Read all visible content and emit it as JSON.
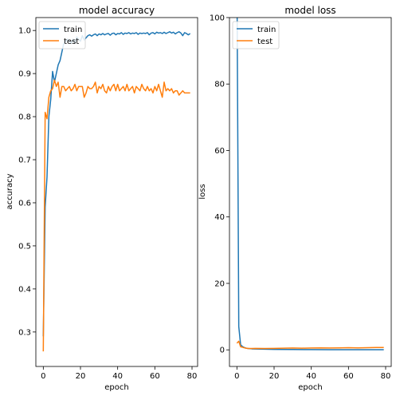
{
  "chart_data": [
    {
      "type": "line",
      "title": "model accuracy",
      "xlabel": "epoch",
      "ylabel": "accuracy",
      "xlim": [
        -4,
        83
      ],
      "ylim": [
        0.22,
        1.03
      ],
      "xticks": [
        0,
        20,
        40,
        60,
        80
      ],
      "yticks": [
        0.3,
        0.4,
        0.5,
        0.6,
        0.7,
        0.8,
        0.9,
        1.0
      ],
      "ytick_labels": [
        "0.3",
        "0.4",
        "0.5",
        "0.6",
        "0.7",
        "0.8",
        "0.9",
        "1.0"
      ],
      "legend": {
        "position": "top-left",
        "entries": [
          "train",
          "test"
        ]
      },
      "grid": false,
      "series": [
        {
          "name": "train",
          "color": "#1f77b4",
          "x": [
            0,
            1,
            2,
            3,
            4,
            5,
            6,
            7,
            8,
            9,
            10,
            11,
            12,
            13,
            14,
            15,
            16,
            17,
            18,
            19,
            20,
            21,
            22,
            23,
            24,
            25,
            26,
            27,
            28,
            29,
            30,
            31,
            32,
            33,
            34,
            35,
            36,
            37,
            38,
            39,
            40,
            41,
            42,
            43,
            44,
            45,
            46,
            47,
            48,
            49,
            50,
            51,
            52,
            53,
            54,
            55,
            56,
            57,
            58,
            59,
            60,
            61,
            62,
            63,
            64,
            65,
            66,
            67,
            68,
            69,
            70,
            71,
            72,
            73,
            74,
            75,
            76,
            77,
            78,
            79
          ],
          "values": [
            0.29,
            0.59,
            0.66,
            0.8,
            0.84,
            0.905,
            0.88,
            0.9,
            0.92,
            0.93,
            0.95,
            0.97,
            0.975,
            0.98,
            0.975,
            0.97,
            0.98,
            0.97,
            0.985,
            0.98,
            0.975,
            0.988,
            0.978,
            0.983,
            0.988,
            0.99,
            0.987,
            0.99,
            0.992,
            0.988,
            0.992,
            0.99,
            0.993,
            0.99,
            0.992,
            0.993,
            0.989,
            0.993,
            0.994,
            0.99,
            0.993,
            0.992,
            0.995,
            0.991,
            0.994,
            0.993,
            0.995,
            0.992,
            0.994,
            0.993,
            0.995,
            0.991,
            0.994,
            0.993,
            0.994,
            0.993,
            0.995,
            0.99,
            0.994,
            0.995,
            0.992,
            0.996,
            0.994,
            0.995,
            0.993,
            0.996,
            0.993,
            0.995,
            0.997,
            0.994,
            0.996,
            0.992,
            0.995,
            0.997,
            0.994,
            0.988,
            0.995,
            0.993,
            0.99,
            0.993
          ]
        },
        {
          "name": "test",
          "color": "#ff7f0e",
          "x": [
            0,
            1,
            2,
            3,
            4,
            5,
            6,
            7,
            8,
            9,
            10,
            11,
            12,
            13,
            14,
            15,
            16,
            17,
            18,
            19,
            20,
            21,
            22,
            23,
            24,
            25,
            26,
            27,
            28,
            29,
            30,
            31,
            32,
            33,
            34,
            35,
            36,
            37,
            38,
            39,
            40,
            41,
            42,
            43,
            44,
            45,
            46,
            47,
            48,
            49,
            50,
            51,
            52,
            53,
            54,
            55,
            56,
            57,
            58,
            59,
            60,
            61,
            62,
            63,
            64,
            65,
            66,
            67,
            68,
            69,
            70,
            71,
            72,
            73,
            74,
            75,
            76,
            77,
            78,
            79
          ],
          "values": [
            0.255,
            0.81,
            0.795,
            0.845,
            0.86,
            0.865,
            0.885,
            0.87,
            0.88,
            0.845,
            0.87,
            0.87,
            0.86,
            0.865,
            0.87,
            0.86,
            0.865,
            0.875,
            0.86,
            0.87,
            0.87,
            0.87,
            0.845,
            0.855,
            0.87,
            0.865,
            0.865,
            0.87,
            0.88,
            0.855,
            0.87,
            0.865,
            0.875,
            0.86,
            0.855,
            0.87,
            0.86,
            0.87,
            0.875,
            0.86,
            0.875,
            0.86,
            0.865,
            0.87,
            0.86,
            0.875,
            0.86,
            0.865,
            0.87,
            0.855,
            0.87,
            0.865,
            0.86,
            0.875,
            0.865,
            0.86,
            0.87,
            0.86,
            0.865,
            0.855,
            0.87,
            0.86,
            0.875,
            0.86,
            0.845,
            0.88,
            0.86,
            0.865,
            0.86,
            0.865,
            0.855,
            0.86,
            0.86,
            0.85,
            0.855,
            0.86,
            0.855,
            0.855,
            0.855,
            0.855
          ]
        }
      ]
    },
    {
      "type": "line",
      "title": "model loss",
      "xlabel": "epoch",
      "ylabel": "loss",
      "xlim": [
        -4,
        83
      ],
      "ylim": [
        -5,
        100
      ],
      "xticks": [
        0,
        20,
        40,
        60,
        80
      ],
      "yticks": [
        0,
        20,
        40,
        60,
        80,
        100
      ],
      "ytick_labels": [
        "0",
        "20",
        "40",
        "60",
        "80",
        "100"
      ],
      "legend": {
        "position": "top-left",
        "entries": [
          "train",
          "test"
        ]
      },
      "grid": false,
      "series": [
        {
          "name": "train",
          "color": "#1f77b4",
          "x": [
            0,
            1,
            2,
            3,
            4,
            5,
            6,
            8,
            10,
            15,
            20,
            30,
            40,
            50,
            60,
            70,
            79
          ],
          "values": [
            115,
            7,
            1.5,
            1.0,
            0.7,
            0.5,
            0.4,
            0.3,
            0.25,
            0.2,
            0.15,
            0.1,
            0.08,
            0.06,
            0.05,
            0.05,
            0.05
          ]
        },
        {
          "name": "test",
          "color": "#ff7f0e",
          "x": [
            0,
            1,
            2,
            3,
            4,
            5,
            6,
            8,
            10,
            15,
            20,
            25,
            30,
            35,
            40,
            45,
            50,
            55,
            60,
            65,
            70,
            75,
            79
          ],
          "values": [
            2.0,
            2.6,
            0.9,
            0.8,
            0.6,
            0.5,
            0.4,
            0.4,
            0.45,
            0.4,
            0.45,
            0.5,
            0.55,
            0.5,
            0.55,
            0.6,
            0.55,
            0.6,
            0.65,
            0.6,
            0.65,
            0.7,
            0.7
          ]
        }
      ]
    }
  ]
}
